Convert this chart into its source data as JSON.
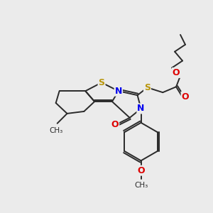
{
  "background_color": "#ebebeb",
  "bond_color": "#2a2a2a",
  "atom_colors": {
    "S": "#b8960c",
    "N": "#0000ee",
    "O": "#dd0000",
    "C": "#2a2a2a"
  },
  "figsize": [
    3.0,
    3.0
  ],
  "dpi": 100
}
